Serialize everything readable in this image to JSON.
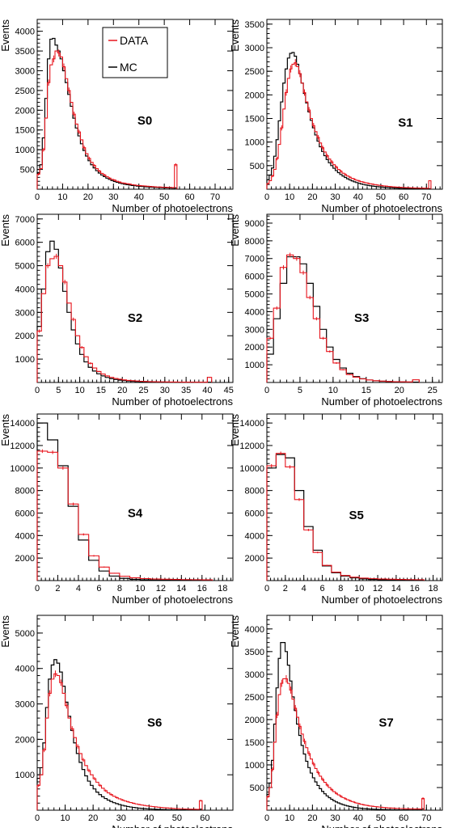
{
  "colors": {
    "data": "#e8141c",
    "mc": "#000000",
    "axis": "#000000"
  },
  "legend": {
    "entries": [
      {
        "label": "DATA",
        "color": "#e8141c"
      },
      {
        "label": "MC",
        "color": "#000000"
      }
    ]
  },
  "chart_data": [
    {
      "id": "S0",
      "type": "histogram",
      "title": "S0",
      "xlabel": "Number of photoelectrons",
      "ylabel": "Events",
      "xlim": [
        0,
        77
      ],
      "ylim": [
        0,
        4300
      ],
      "xticks": [
        0,
        10,
        20,
        30,
        40,
        50,
        60,
        70
      ],
      "yticks": [
        500,
        1000,
        1500,
        2000,
        2500,
        3000,
        3500,
        4000
      ],
      "bin_width": 1,
      "series": [
        {
          "name": "DATA",
          "values": [
            380,
            520,
            1000,
            1800,
            2700,
            3150,
            3300,
            3500,
            3450,
            3350,
            3100,
            2800,
            2500,
            2200,
            1900,
            1650,
            1450,
            1250,
            1050,
            900,
            780,
            680,
            600,
            520,
            460,
            400,
            360,
            320,
            280,
            250,
            230,
            200,
            180,
            160,
            150,
            140,
            130,
            115,
            105,
            95,
            90,
            85,
            80,
            75,
            70,
            65,
            60,
            55,
            55,
            50,
            50,
            45,
            45,
            40,
            620
          ]
        },
        {
          "name": "MC",
          "values": [
            420,
            620,
            1300,
            2300,
            3300,
            3800,
            3820,
            3650,
            3500,
            3300,
            3000,
            2700,
            2400,
            2100,
            1800,
            1550,
            1350,
            1150,
            980,
            840,
            720,
            620,
            540,
            470,
            410,
            360,
            320,
            280,
            250,
            220,
            195,
            175,
            155,
            140,
            125,
            115,
            105,
            95,
            88,
            80,
            74,
            68,
            62,
            58,
            54,
            50,
            46,
            43,
            40,
            37,
            34,
            32,
            30,
            28,
            30
          ]
        }
      ]
    },
    {
      "id": "S1",
      "type": "histogram",
      "title": "S1",
      "xlabel": "Number of photoelectrons",
      "ylabel": "Events",
      "xlim": [
        0,
        77
      ],
      "ylim": [
        0,
        3600
      ],
      "xticks": [
        0,
        10,
        20,
        30,
        40,
        50,
        60,
        70
      ],
      "yticks": [
        500,
        1000,
        1500,
        2000,
        2500,
        3000,
        3500
      ],
      "bin_width": 1,
      "series": [
        {
          "name": "DATA",
          "values": [
            120,
            180,
            280,
            420,
            650,
            950,
            1300,
            1700,
            2050,
            2350,
            2550,
            2650,
            2680,
            2600,
            2450,
            2250,
            2050,
            1850,
            1680,
            1500,
            1350,
            1220,
            1100,
            980,
            880,
            790,
            710,
            640,
            580,
            520,
            470,
            420,
            380,
            340,
            310,
            280,
            255,
            230,
            210,
            190,
            175,
            160,
            148,
            136,
            125,
            115,
            106,
            98,
            90,
            83,
            76,
            70,
            65,
            60,
            55,
            51,
            47,
            44,
            41,
            38,
            35,
            33,
            31,
            29,
            27,
            25,
            24,
            23,
            22,
            21,
            20,
            180
          ]
        },
        {
          "name": "MC",
          "values": [
            200,
            300,
            450,
            700,
            1050,
            1450,
            1850,
            2250,
            2550,
            2780,
            2880,
            2900,
            2820,
            2650,
            2450,
            2250,
            2030,
            1830,
            1640,
            1460,
            1300,
            1150,
            1020,
            900,
            800,
            710,
            630,
            560,
            500,
            445,
            395,
            350,
            312,
            278,
            248,
            221,
            197,
            176,
            157,
            140,
            125,
            112,
            100,
            90,
            81,
            73,
            66,
            60,
            54,
            49,
            45,
            41,
            37,
            34,
            31,
            28,
            26,
            24,
            22,
            20,
            19,
            17,
            16,
            15,
            14,
            13,
            12,
            11,
            10,
            10,
            9,
            9
          ]
        }
      ]
    },
    {
      "id": "S2",
      "type": "histogram",
      "title": "S2",
      "xlabel": "Number of photoelectrons",
      "ylabel": "Events",
      "xlim": [
        0,
        46
      ],
      "ylim": [
        0,
        7200
      ],
      "xticks": [
        0,
        5,
        10,
        15,
        20,
        25,
        30,
        35,
        40,
        45
      ],
      "yticks": [
        1000,
        2000,
        3000,
        4000,
        5000,
        6000,
        7000
      ],
      "bin_width": 1,
      "series": [
        {
          "name": "DATA",
          "values": [
            2200,
            3800,
            5000,
            5300,
            5400,
            5000,
            4300,
            3400,
            2700,
            2000,
            1500,
            1100,
            820,
            620,
            470,
            360,
            280,
            220,
            170,
            140,
            110,
            90,
            75,
            62,
            52,
            44,
            38,
            33,
            29,
            26,
            23,
            21,
            19,
            17,
            15,
            14,
            13,
            12,
            11,
            10,
            220
          ]
        },
        {
          "name": "MC",
          "values": [
            2400,
            4000,
            5600,
            6050,
            5700,
            4900,
            3900,
            3000,
            2250,
            1650,
            1200,
            880,
            650,
            490,
            370,
            280,
            215,
            165,
            128,
            100,
            80,
            64,
            52,
            43,
            36,
            30,
            26,
            22,
            19,
            17,
            15,
            13,
            12,
            11,
            10,
            9,
            8,
            8,
            7,
            7,
            8
          ]
        }
      ]
    },
    {
      "id": "S3",
      "type": "histogram",
      "title": "S3",
      "xlabel": "Number of photoelectrons",
      "ylabel": "Events",
      "xlim": [
        0,
        26.5
      ],
      "ylim": [
        0,
        9500
      ],
      "xticks": [
        0,
        5,
        10,
        15,
        20,
        25
      ],
      "yticks": [
        1000,
        2000,
        3000,
        4000,
        5000,
        6000,
        7000,
        8000,
        9000
      ],
      "bin_width": 1,
      "series": [
        {
          "name": "DATA",
          "values": [
            2500,
            4200,
            6500,
            7200,
            7000,
            6200,
            4800,
            3600,
            2500,
            1750,
            1100,
            720,
            450,
            300,
            200,
            140,
            100,
            75,
            55,
            45,
            35,
            30,
            150
          ]
        },
        {
          "name": "MC",
          "values": [
            1600,
            3600,
            5600,
            7100,
            7100,
            6700,
            5600,
            4300,
            3000,
            2000,
            1300,
            820,
            520,
            330,
            210,
            140,
            95,
            68,
            50,
            38,
            30,
            25,
            20
          ]
        }
      ]
    },
    {
      "id": "S4",
      "type": "histogram",
      "title": "S4",
      "xlabel": "Number of photoelectrons",
      "ylabel": "Events",
      "xlim": [
        0,
        19
      ],
      "ylim": [
        0,
        14800
      ],
      "xticks": [
        0,
        2,
        4,
        6,
        8,
        10,
        12,
        14,
        16,
        18
      ],
      "yticks": [
        2000,
        4000,
        6000,
        8000,
        10000,
        12000,
        14000
      ],
      "bin_width": 1,
      "series": [
        {
          "name": "DATA",
          "values": [
            11500,
            11400,
            10000,
            6800,
            4100,
            2200,
            1200,
            650,
            380,
            250,
            180,
            140,
            120,
            100,
            90,
            80,
            70
          ]
        },
        {
          "name": "MC",
          "values": [
            14000,
            12500,
            10200,
            6600,
            3600,
            1800,
            850,
            400,
            200,
            110,
            70,
            50,
            40,
            30,
            25,
            20,
            15
          ]
        }
      ]
    },
    {
      "id": "S5",
      "type": "histogram",
      "title": "S5",
      "xlabel": "Number of photoelectrons",
      "ylabel": "Events",
      "xlim": [
        0,
        19
      ],
      "ylim": [
        0,
        14800
      ],
      "xticks": [
        0,
        2,
        4,
        6,
        8,
        10,
        12,
        14,
        16,
        18
      ],
      "yticks": [
        2000,
        4000,
        6000,
        8000,
        10000,
        12000,
        14000
      ],
      "bin_width": 1,
      "series": [
        {
          "name": "DATA",
          "values": [
            10200,
            11300,
            10100,
            7200,
            4500,
            2500,
            1350,
            750,
            450,
            300,
            220,
            170,
            140,
            120,
            100,
            90,
            80
          ]
        },
        {
          "name": "MC",
          "values": [
            10000,
            11200,
            10900,
            8000,
            4800,
            2700,
            1300,
            700,
            400,
            240,
            150,
            100,
            70,
            50,
            40,
            30,
            25
          ]
        }
      ]
    },
    {
      "id": "S6",
      "type": "histogram",
      "title": "S6",
      "xlabel": "Number of photoelectrons",
      "ylabel": "Events",
      "xlim": [
        0,
        70
      ],
      "ylim": [
        0,
        5500
      ],
      "xticks": [
        0,
        10,
        20,
        30,
        40,
        50,
        60
      ],
      "yticks": [
        1000,
        2000,
        3000,
        4000,
        5000
      ],
      "bin_width": 1,
      "series": [
        {
          "name": "DATA",
          "values": [
            700,
            1000,
            1700,
            2600,
            3300,
            3700,
            3850,
            3800,
            3600,
            3300,
            2950,
            2600,
            2300,
            2050,
            1800,
            1600,
            1420,
            1260,
            1120,
            1000,
            890,
            790,
            700,
            620,
            550,
            490,
            440,
            395,
            355,
            320,
            290,
            262,
            237,
            215,
            195,
            177,
            161,
            147,
            134,
            122,
            111,
            101,
            92,
            84,
            77,
            70,
            64,
            58,
            53,
            48,
            44,
            40,
            37,
            34,
            31,
            29,
            27,
            25,
            270
          ]
        },
        {
          "name": "MC",
          "values": [
            900,
            1200,
            1900,
            2900,
            3700,
            4100,
            4250,
            4150,
            3900,
            3500,
            3050,
            2650,
            2250,
            1900,
            1600,
            1350,
            1150,
            970,
            820,
            700,
            600,
            510,
            440,
            380,
            330,
            285,
            245,
            212,
            185,
            160,
            138,
            120,
            104,
            90,
            78,
            68,
            59,
            51,
            45,
            39,
            34,
            30,
            26,
            23,
            20,
            18,
            16,
            14,
            12,
            11,
            10,
            9,
            8,
            7,
            7,
            6,
            6,
            5,
            30
          ]
        }
      ]
    },
    {
      "id": "S7",
      "type": "histogram",
      "title": "S7",
      "xlabel": "Number of photoelectrons",
      "ylabel": "Events",
      "xlim": [
        0,
        77
      ],
      "ylim": [
        0,
        4300
      ],
      "xticks": [
        0,
        10,
        20,
        30,
        40,
        50,
        60,
        70
      ],
      "yticks": [
        500,
        1000,
        1500,
        2000,
        2500,
        3000,
        3500,
        4000
      ],
      "bin_width": 1,
      "series": [
        {
          "name": "DATA",
          "values": [
            300,
            500,
            900,
            1500,
            2100,
            2550,
            2800,
            2900,
            2900,
            2800,
            2650,
            2450,
            2250,
            2050,
            1850,
            1680,
            1520,
            1380,
            1250,
            1130,
            1020,
            920,
            830,
            750,
            680,
            615,
            555,
            500,
            452,
            410,
            372,
            338,
            307,
            279,
            254,
            231,
            210,
            191,
            174,
            158,
            144,
            131,
            120,
            110,
            101,
            93,
            86,
            80,
            74,
            69,
            64,
            59,
            55,
            51,
            48,
            45,
            42,
            40,
            38,
            36,
            34,
            32,
            31,
            30,
            29,
            28,
            27,
            27,
            260
          ]
        },
        {
          "name": "MC",
          "values": [
            350,
            600,
            1100,
            1900,
            2700,
            3350,
            3700,
            3700,
            3500,
            3200,
            2850,
            2500,
            2200,
            1900,
            1650,
            1430,
            1240,
            1080,
            940,
            820,
            715,
            625,
            545,
            475,
            415,
            362,
            316,
            276,
            241,
            210,
            183,
            160,
            140,
            122,
            107,
            94,
            82,
            72,
            63,
            55,
            48,
            42,
            37,
            33,
            29,
            26,
            23,
            21,
            19,
            17,
            15,
            14,
            13,
            12,
            11,
            10,
            9,
            9,
            8,
            8,
            7,
            7,
            6,
            6,
            6,
            5,
            5,
            5,
            30
          ]
        }
      ]
    }
  ]
}
